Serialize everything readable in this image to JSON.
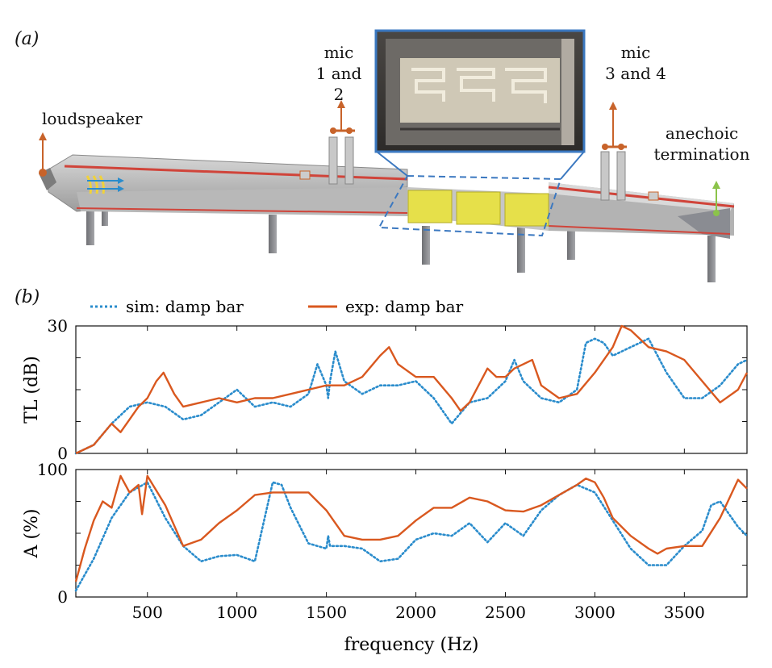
{
  "figure": {
    "panel_a_label": "(a)",
    "panel_b_label": "(b)",
    "annotations": {
      "mic12": [
        "mic",
        "1 and 2"
      ],
      "mic34": [
        "mic",
        "3 and 4"
      ],
      "loudspeaker": "loudspeaker",
      "anechoic": [
        "anechoic",
        "termination"
      ]
    },
    "colors": {
      "sim": "#2a8ccc",
      "exp": "#d9581f",
      "duct_red": "#d0443a",
      "arrow": "#c8632a",
      "green_arrow": "#8bc34a",
      "yellow_block": "#e6e04a"
    }
  },
  "chart_data": [
    {
      "type": "line",
      "ylabel": "TL (dB)",
      "xlabel": "",
      "xlim": [
        100,
        3850
      ],
      "ylim": [
        0,
        30
      ],
      "yticks": [
        "0",
        "30"
      ],
      "yticks_values": [
        0,
        30
      ],
      "series": [
        {
          "name": "sim: damp bar",
          "style": "dotted",
          "x": [
            100,
            200,
            300,
            400,
            500,
            600,
            700,
            800,
            900,
            1000,
            1100,
            1200,
            1300,
            1400,
            1450,
            1500,
            1510,
            1520,
            1550,
            1600,
            1700,
            1800,
            1900,
            2000,
            2100,
            2200,
            2300,
            2400,
            2500,
            2550,
            2600,
            2700,
            2800,
            2900,
            2950,
            3000,
            3050,
            3100,
            3200,
            3300,
            3400,
            3500,
            3600,
            3700,
            3800,
            3850
          ],
          "y": [
            0,
            2,
            7,
            11,
            12,
            11,
            8,
            9,
            12,
            15,
            11,
            12,
            11,
            14,
            21,
            16,
            13,
            17,
            24,
            17,
            14,
            16,
            16,
            17,
            13,
            7,
            12,
            13,
            17,
            22,
            17,
            13,
            12,
            15,
            26,
            27,
            26,
            23,
            25,
            27,
            19,
            13,
            13,
            16,
            21,
            22
          ]
        },
        {
          "name": "exp: damp bar",
          "style": "solid",
          "x": [
            100,
            200,
            280,
            300,
            350,
            400,
            450,
            500,
            550,
            590,
            650,
            700,
            800,
            900,
            1000,
            1100,
            1200,
            1300,
            1400,
            1500,
            1600,
            1700,
            1800,
            1850,
            1900,
            2000,
            2100,
            2200,
            2250,
            2300,
            2400,
            2450,
            2500,
            2550,
            2600,
            2650,
            2700,
            2800,
            2900,
            3000,
            3100,
            3150,
            3200,
            3250,
            3300,
            3400,
            3500,
            3600,
            3700,
            3800,
            3850
          ],
          "y": [
            0,
            2,
            6,
            7,
            5,
            8,
            11,
            13,
            17,
            19,
            14,
            11,
            12,
            13,
            12,
            13,
            13,
            14,
            15,
            16,
            16,
            18,
            23,
            25,
            21,
            18,
            18,
            13,
            10,
            12,
            20,
            18,
            18,
            20,
            21,
            22,
            16,
            13,
            14,
            19,
            25,
            31,
            29,
            27,
            25,
            24,
            22,
            17,
            12,
            15,
            19
          ]
        }
      ]
    },
    {
      "type": "line",
      "ylabel": "A (%)",
      "xlabel": "frequency (Hz)",
      "xlim": [
        100,
        3850
      ],
      "ylim": [
        0,
        100
      ],
      "xticks": [
        "500",
        "1000",
        "1500",
        "2000",
        "2500",
        "3000",
        "3500"
      ],
      "xticks_values": [
        500,
        1000,
        1500,
        2000,
        2500,
        3000,
        3500
      ],
      "yticks": [
        "0",
        "100"
      ],
      "yticks_values": [
        0,
        100
      ],
      "series": [
        {
          "name": "sim: damp bar",
          "style": "dotted",
          "x": [
            100,
            200,
            300,
            400,
            500,
            600,
            700,
            800,
            900,
            1000,
            1100,
            1200,
            1250,
            1300,
            1400,
            1500,
            1510,
            1520,
            1600,
            1700,
            1800,
            1900,
            2000,
            2100,
            2200,
            2300,
            2400,
            2500,
            2600,
            2700,
            2800,
            2900,
            3000,
            3100,
            3200,
            3300,
            3400,
            3500,
            3600,
            3650,
            3700,
            3800,
            3850
          ],
          "y": [
            5,
            30,
            62,
            82,
            90,
            62,
            40,
            28,
            32,
            33,
            28,
            90,
            88,
            70,
            42,
            38,
            48,
            40,
            40,
            38,
            28,
            30,
            45,
            50,
            48,
            58,
            43,
            58,
            48,
            68,
            80,
            88,
            82,
            60,
            38,
            25,
            25,
            40,
            52,
            72,
            75,
            55,
            48
          ]
        },
        {
          "name": "exp: damp bar",
          "style": "solid",
          "x": [
            100,
            150,
            200,
            250,
            300,
            350,
            400,
            450,
            470,
            500,
            600,
            700,
            800,
            900,
            1000,
            1100,
            1200,
            1300,
            1400,
            1500,
            1600,
            1700,
            1800,
            1900,
            2000,
            2100,
            2200,
            2300,
            2400,
            2500,
            2600,
            2700,
            2800,
            2900,
            2950,
            3000,
            3050,
            3100,
            3200,
            3300,
            3350,
            3400,
            3500,
            3600,
            3700,
            3800,
            3850
          ],
          "y": [
            12,
            38,
            60,
            75,
            70,
            95,
            82,
            88,
            65,
            95,
            72,
            40,
            45,
            58,
            68,
            80,
            82,
            82,
            82,
            68,
            48,
            45,
            45,
            48,
            60,
            70,
            70,
            78,
            75,
            68,
            67,
            72,
            80,
            88,
            93,
            90,
            78,
            62,
            48,
            38,
            34,
            38,
            40,
            40,
            62,
            92,
            85
          ]
        }
      ]
    }
  ]
}
